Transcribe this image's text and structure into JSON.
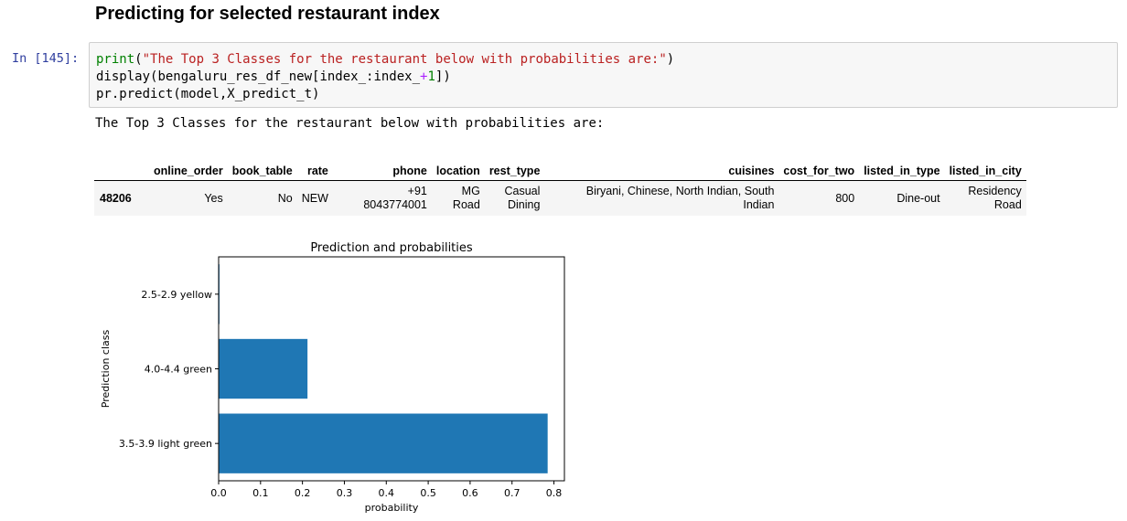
{
  "heading": "Predicting for selected restaurant index",
  "cell": {
    "prompt": "In [145]:",
    "code": {
      "line1": {
        "fn": "print",
        "open": "(",
        "str": "\"The Top 3 Classes for the restaurant below with probabilities are:\"",
        "close": ")"
      },
      "line2": {
        "fn": "display",
        "pre": "(bengaluru_res_df_new[index_:index_",
        "op": "+",
        "num": "1",
        "post": "])"
      },
      "line3": "pr.predict(model,X_predict_t)"
    }
  },
  "output_text": "The Top 3 Classes for the restaurant below with probabilities are:",
  "dataframe": {
    "columns": [
      "online_order",
      "book_table",
      "rate",
      "phone",
      "location",
      "rest_type",
      "cuisines",
      "cost_for_two",
      "listed_in_type",
      "listed_in_city"
    ],
    "rows": [
      {
        "index": "48206",
        "online_order": "Yes",
        "book_table": "No",
        "rate": "NEW",
        "phone_1": "+91",
        "phone_2": "8043774001",
        "location_1": "MG",
        "location_2": "Road",
        "rest_type_1": "Casual",
        "rest_type_2": "Dining",
        "cuisines_1": "Biryani, Chinese, North Indian, South",
        "cuisines_2": "Indian",
        "cost_for_two": "800",
        "listed_in_type": "Dine-out",
        "listed_in_city_1": "Residency",
        "listed_in_city_2": "Road"
      }
    ]
  },
  "chart_data": {
    "type": "bar",
    "orientation": "horizontal",
    "title": "Prediction and probabilities",
    "xlabel": "probability",
    "ylabel": "Prediction class",
    "categories": [
      "3.5-3.9 light green",
      "4.0-4.4 green",
      "2.5-2.9 yellow"
    ],
    "values": [
      0.785,
      0.212,
      0.002
    ],
    "xlim": [
      0,
      0.825
    ],
    "xticks": [
      "0.0",
      "0.1",
      "0.2",
      "0.3",
      "0.4",
      "0.5",
      "0.6",
      "0.7",
      "0.8"
    ],
    "bar_color": "#1f77b4",
    "grid": false
  }
}
